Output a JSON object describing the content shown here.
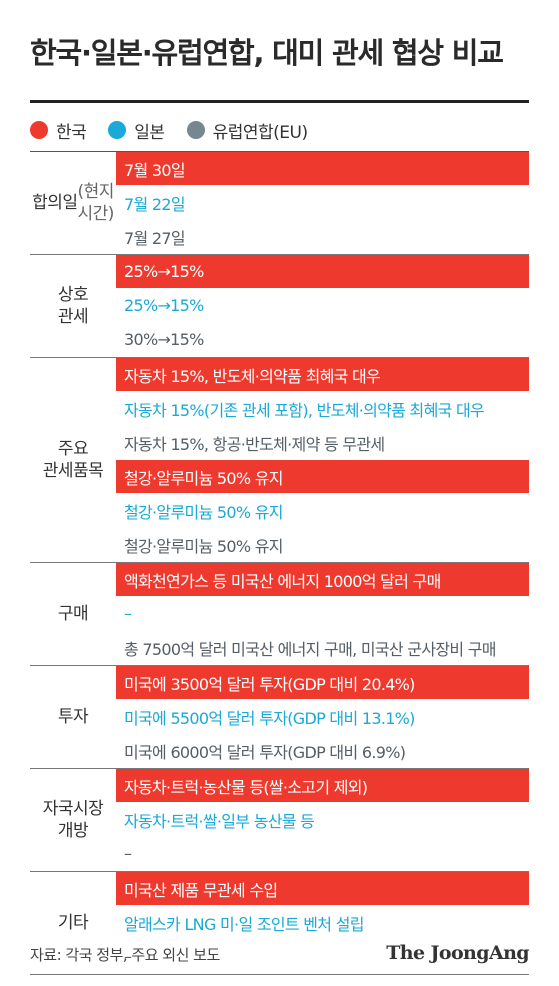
{
  "title": "한국·일본·유럽연합, 대미 관세 협상 비교",
  "legend": [
    {
      "label": "한국",
      "color": "#ee3a2e"
    },
    {
      "label": "일본",
      "color": "#1aa9d8"
    },
    {
      "label": "유럽연합(EU)",
      "color": "#75878f"
    }
  ],
  "sections": [
    {
      "label": "합의일",
      "sub": "(현지\n시간)",
      "rows": [
        {
          "region": "kr",
          "text": "7월 30일"
        },
        {
          "region": "jp",
          "text": "7월 22일"
        },
        {
          "region": "eu",
          "text": "7월 27일"
        }
      ]
    },
    {
      "label": "상호\n관세",
      "sub": "",
      "rows": [
        {
          "region": "kr",
          "text": "25%→15%"
        },
        {
          "region": "jp",
          "text": "25%→15%"
        },
        {
          "region": "eu",
          "text": "30%→15%"
        }
      ]
    },
    {
      "label": "주요\n관세품목",
      "sub": "",
      "rows": [
        {
          "region": "kr",
          "text": "자동차 15%, 반도체·의약품 최혜국 대우"
        },
        {
          "region": "jp",
          "text": "자동차 15%(기존 관세 포함), 반도체·의약품 최혜국 대우"
        },
        {
          "region": "eu",
          "text": "자동차 15%, 항공·반도체·제약 등 무관세"
        },
        {
          "region": "kr",
          "text": "철강·알루미늄 50% 유지"
        },
        {
          "region": "jp",
          "text": "철강·알루미늄 50% 유지"
        },
        {
          "region": "eu",
          "text": "철강·알루미늄 50% 유지"
        }
      ]
    },
    {
      "label": "구매",
      "sub": "",
      "rows": [
        {
          "region": "kr",
          "text": "액화천연가스 등 미국산 에너지 1000억 달러 구매"
        },
        {
          "region": "jp",
          "text": "–"
        },
        {
          "region": "eu",
          "text": "총 7500억 달러 미국산 에너지 구매, 미국산 군사장비 구매"
        }
      ]
    },
    {
      "label": "투자",
      "sub": "",
      "rows": [
        {
          "region": "kr",
          "text": "미국에 3500억 달러 투자(GDP 대비 20.4%)"
        },
        {
          "region": "jp",
          "text": "미국에 5500억 달러 투자(GDP 대비 13.1%)"
        },
        {
          "region": "eu",
          "text": "미국에 6000억 달러 투자(GDP 대비 6.9%)"
        }
      ]
    },
    {
      "label": "자국시장\n개방",
      "sub": "",
      "rows": [
        {
          "region": "kr",
          "text": "자동차·트럭·농산물 등(쌀·소고기 제외)"
        },
        {
          "region": "jp",
          "text": "자동차·트럭·쌀·일부 농산물 등"
        },
        {
          "region": "eu",
          "text": "–"
        }
      ]
    },
    {
      "label": "기타",
      "sub": "",
      "rows": [
        {
          "region": "kr",
          "text": "미국산 제품 무관세 수입"
        },
        {
          "region": "jp",
          "text": "알래스카 LNG 미·일 조인트 벤처 설립"
        },
        {
          "region": "eu",
          "text": "–"
        }
      ]
    }
  ],
  "source": "자료: 각국 정부, 주요 외신 보도",
  "logo": "The JoongAng"
}
